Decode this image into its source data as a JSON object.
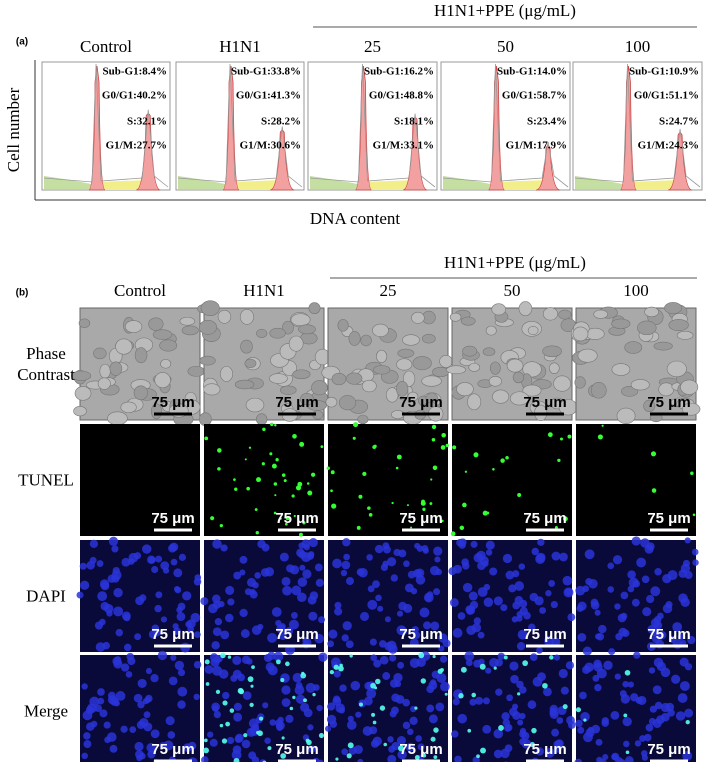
{
  "panel_a": {
    "label": "(a)",
    "group_header": "H1N1+PPE (μg/mL)",
    "y_axis_label": "Cell number",
    "x_axis_label": "DNA content",
    "columns": [
      {
        "title": "Control",
        "stats": [
          "Sub-G1:8.4%",
          "G0/G1:40.2%",
          "S:32.1%",
          "G1/M:27.7%"
        ]
      },
      {
        "title": "H1N1",
        "stats": [
          "Sub-G1:33.8%",
          "G0/G1:41.3%",
          "S:28.2%",
          "G1/M:30.6%"
        ]
      },
      {
        "title": "25",
        "stats": [
          "Sub-G1:16.2%",
          "G0/G1:48.8%",
          "S:18.1%",
          "G1/M:33.1%"
        ]
      },
      {
        "title": "50",
        "stats": [
          "Sub-G1:14.0%",
          "G0/G1:58.7%",
          "S:23.4%",
          "G1/M:17.9%"
        ]
      },
      {
        "title": "100",
        "stats": [
          "Sub-G1:10.9%",
          "G0/G1:51.1%",
          "S:24.7%",
          "G1/M:24.3%"
        ]
      }
    ]
  },
  "panel_b": {
    "label": "(b)",
    "group_header": "H1N1+PPE (μg/mL)",
    "columns": [
      "Control",
      "H1N1",
      "25",
      "50",
      "100"
    ],
    "rows": [
      "Phase Contrast",
      "TUNEL",
      "DAPI",
      "Merge"
    ],
    "scale_bar": "75 μm"
  }
}
